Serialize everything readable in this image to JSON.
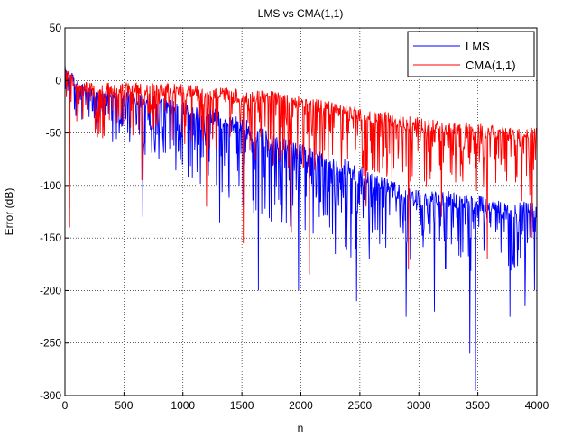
{
  "chart_data": {
    "type": "line",
    "title": "LMS vs CMA(1,1)",
    "xlabel": "n",
    "ylabel": "Error (dB)",
    "xlim": [
      0,
      4000
    ],
    "ylim": [
      -300,
      50
    ],
    "xticks": [
      0,
      500,
      1000,
      1500,
      2000,
      2500,
      3000,
      3500,
      4000
    ],
    "yticks": [
      50,
      0,
      -50,
      -100,
      -150,
      -200,
      -250,
      -300
    ],
    "grid": true,
    "legend_position": "top-right",
    "series": [
      {
        "name": "LMS",
        "color": "#0000ff",
        "envelope": {
          "x": [
            0,
            100,
            250,
            500,
            750,
            1000,
            1250,
            1500,
            1750,
            2000,
            2250,
            2500,
            2750,
            3000,
            3250,
            3500,
            3750,
            4000
          ],
          "top": [
            15,
            2,
            -8,
            -10,
            -15,
            -20,
            -25,
            -35,
            -50,
            -60,
            -70,
            -80,
            -95,
            -105,
            -105,
            -110,
            -115,
            -115
          ],
          "base": [
            -5,
            -20,
            -30,
            -40,
            -50,
            -60,
            -70,
            -80,
            -95,
            -110,
            -120,
            -130,
            -135,
            -140,
            -145,
            -148,
            -150,
            -150
          ]
        },
        "deep_dips": [
          {
            "x": 660,
            "y": -130
          },
          {
            "x": 1310,
            "y": -135
          },
          {
            "x": 1640,
            "y": -200
          },
          {
            "x": 1980,
            "y": -200
          },
          {
            "x": 2470,
            "y": -210
          },
          {
            "x": 2890,
            "y": -225
          },
          {
            "x": 3130,
            "y": -220
          },
          {
            "x": 3430,
            "y": -260
          },
          {
            "x": 3480,
            "y": -295
          },
          {
            "x": 3770,
            "y": -225
          },
          {
            "x": 3900,
            "y": -215
          },
          {
            "x": 3980,
            "y": -200
          }
        ]
      },
      {
        "name": "CMA(1,1)",
        "color": "#ff0000",
        "envelope": {
          "x": [
            0,
            100,
            250,
            500,
            750,
            1000,
            1250,
            1500,
            1750,
            2000,
            2250,
            2500,
            2750,
            3000,
            3250,
            3500,
            3750,
            4000
          ],
          "top": [
            15,
            0,
            -2,
            -2,
            -3,
            -3,
            -5,
            -8,
            -10,
            -15,
            -20,
            -25,
            -30,
            -35,
            -40,
            -40,
            -45,
            -45
          ],
          "base": [
            -10,
            -25,
            -30,
            -30,
            -32,
            -35,
            -38,
            -42,
            -48,
            -52,
            -55,
            -60,
            -65,
            -70,
            -72,
            -75,
            -78,
            -80
          ]
        },
        "deep_dips": [
          {
            "x": 40,
            "y": -140
          },
          {
            "x": 650,
            "y": -95
          },
          {
            "x": 1200,
            "y": -120
          },
          {
            "x": 1510,
            "y": -155
          },
          {
            "x": 1920,
            "y": -145
          },
          {
            "x": 2070,
            "y": -185
          },
          {
            "x": 2550,
            "y": -120
          },
          {
            "x": 2910,
            "y": -180
          },
          {
            "x": 3190,
            "y": -130
          },
          {
            "x": 3580,
            "y": -170
          },
          {
            "x": 3870,
            "y": -115
          },
          {
            "x": 3960,
            "y": -150
          }
        ]
      }
    ]
  }
}
